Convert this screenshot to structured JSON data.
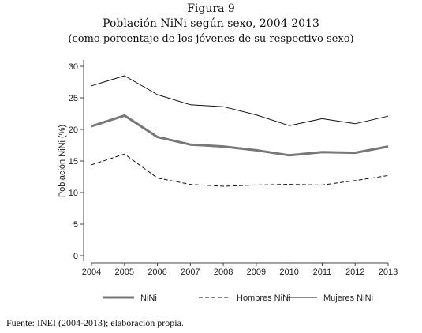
{
  "header": {
    "figure_label": "Figura 9",
    "title": "Población NiNi según sexo, 2004-2013",
    "subtitle": "(como porcentaje de los jóvenes de su respectivo sexo)"
  },
  "source": "Fuente: INEI (2004-2013); elaboración propia.",
  "chart_data": {
    "type": "line",
    "title": "Población NiNi según sexo, 2004-2013",
    "subtitle": "(como porcentaje de los jóvenes de su respectivo sexo)",
    "xlabel": "",
    "ylabel": "Población NiNi (%)",
    "x": [
      "2004",
      "2005",
      "2006",
      "2007",
      "2008",
      "2009",
      "2010",
      "2011",
      "2012",
      "2013"
    ],
    "ylim": [
      0,
      30
    ],
    "yticks": [
      "0",
      "5",
      "10",
      "15",
      "20",
      "25",
      "30"
    ],
    "grid": false,
    "legend_position": "bottom",
    "series": [
      {
        "name": "NiNi",
        "values": [
          20.5,
          22.2,
          18.8,
          17.6,
          17.3,
          16.7,
          15.9,
          16.4,
          16.3,
          17.3
        ],
        "color": "#777777",
        "style": "thick-solid"
      },
      {
        "name": "Hombres NiNi",
        "values": [
          14.4,
          16.1,
          12.3,
          11.3,
          11.0,
          11.2,
          11.3,
          11.2,
          11.9,
          12.7
        ],
        "color": "#111111",
        "style": "dashed"
      },
      {
        "name": "Mujeres NiNi",
        "values": [
          26.9,
          28.5,
          25.5,
          23.9,
          23.6,
          22.3,
          20.6,
          21.7,
          20.9,
          22.1
        ],
        "color": "#111111",
        "style": "thin-solid"
      }
    ]
  }
}
